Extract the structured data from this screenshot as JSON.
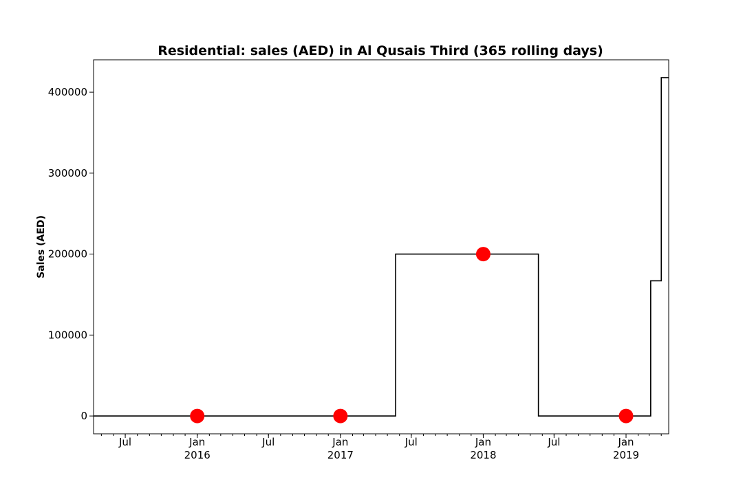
{
  "chart_data": {
    "type": "line",
    "title": "Residential: sales (AED) in Al Qusais Third (365 rolling days)",
    "xlabel": "",
    "ylabel": "Sales (AED)",
    "xlim": [
      "2015-04-11",
      "2019-04-20"
    ],
    "ylim": [
      -22000,
      440000
    ],
    "yticks": [
      0,
      100000,
      200000,
      300000,
      400000
    ],
    "xticks": [
      {
        "date": "2015-07-01",
        "label": "Jul",
        "year": ""
      },
      {
        "date": "2016-01-01",
        "label": "Jan",
        "year": "2016"
      },
      {
        "date": "2016-07-01",
        "label": "Jul",
        "year": ""
      },
      {
        "date": "2017-01-01",
        "label": "Jan",
        "year": "2017"
      },
      {
        "date": "2017-07-01",
        "label": "Jul",
        "year": ""
      },
      {
        "date": "2018-01-01",
        "label": "Jan",
        "year": "2018"
      },
      {
        "date": "2018-07-01",
        "label": "Jul",
        "year": ""
      },
      {
        "date": "2019-01-01",
        "label": "Jan",
        "year": "2019"
      }
    ],
    "grid": false,
    "series": [
      {
        "kind": "step-line",
        "color": "#000000",
        "points": [
          {
            "x": "2015-04-11",
            "y": 0
          },
          {
            "x": "2017-05-22",
            "y": 0
          },
          {
            "x": "2017-05-22",
            "y": 200000
          },
          {
            "x": "2018-05-22",
            "y": 200000
          },
          {
            "x": "2018-05-22",
            "y": 0
          },
          {
            "x": "2019-03-05",
            "y": 0
          },
          {
            "x": "2019-03-05",
            "y": 167000
          },
          {
            "x": "2019-04-01",
            "y": 167000
          },
          {
            "x": "2019-04-01",
            "y": 418000
          },
          {
            "x": "2019-04-20",
            "y": 418000
          }
        ]
      },
      {
        "kind": "markers",
        "color": "#ff0000",
        "points": [
          {
            "x": "2016-01-01",
            "y": 0
          },
          {
            "x": "2017-01-01",
            "y": 0
          },
          {
            "x": "2018-01-01",
            "y": 200000
          },
          {
            "x": "2019-01-01",
            "y": 0
          }
        ]
      }
    ]
  }
}
